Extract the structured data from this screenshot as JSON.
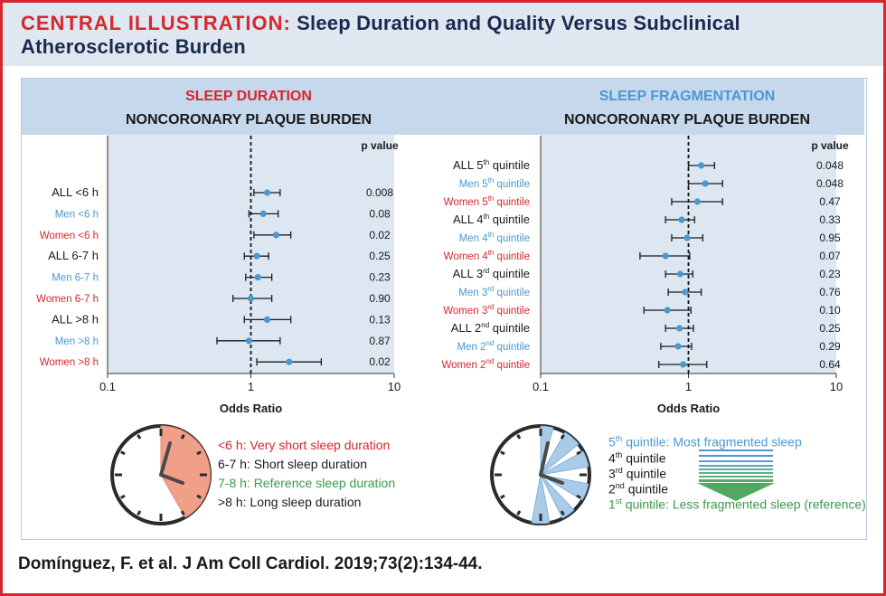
{
  "header": {
    "lead": "CENTRAL ILLUSTRATION:",
    "title": "Sleep Duration and Quality Versus Subclinical Atherosclerotic Burden"
  },
  "left_panel": {
    "section_title": "SLEEP DURATION",
    "subtitle": "NONCORONARY PLAQUE BURDEN",
    "pvalue_header": "p value"
  },
  "right_panel": {
    "section_title": "SLEEP FRAGMENTATION",
    "subtitle": "NONCORONARY PLAQUE BURDEN",
    "pvalue_header": "p value"
  },
  "chart_data": [
    {
      "type": "forest",
      "title": "SLEEP DURATION — NONCORONARY PLAQUE BURDEN",
      "xlabel": "Odds Ratio",
      "xscale": "log",
      "xlim": [
        0.1,
        10
      ],
      "xticks": [
        "0.1",
        "1",
        "10"
      ],
      "reference_line": 1,
      "rows": [
        {
          "label": "ALL <6 h",
          "group": "all",
          "or": 1.3,
          "lo": 1.05,
          "hi": 1.6,
          "p": "0.008"
        },
        {
          "label": "Men <6 h",
          "group": "men",
          "or": 1.22,
          "lo": 0.97,
          "hi": 1.55,
          "p": "0.08"
        },
        {
          "label": "Women <6 h",
          "group": "women",
          "or": 1.5,
          "lo": 1.05,
          "hi": 1.9,
          "p": "0.02"
        },
        {
          "label": "ALL 6-7 h",
          "group": "all",
          "or": 1.1,
          "lo": 0.9,
          "hi": 1.33,
          "p": "0.25"
        },
        {
          "label": "Men 6-7 h",
          "group": "men",
          "or": 1.12,
          "lo": 0.92,
          "hi": 1.4,
          "p": "0.23"
        },
        {
          "label": "Women 6-7 h",
          "group": "women",
          "or": 1.0,
          "lo": 0.75,
          "hi": 1.4,
          "p": "0.90"
        },
        {
          "label": "ALL >8 h",
          "group": "all",
          "or": 1.3,
          "lo": 0.9,
          "hi": 1.9,
          "p": "0.13"
        },
        {
          "label": "Men >8 h",
          "group": "men",
          "or": 0.97,
          "lo": 0.58,
          "hi": 1.6,
          "p": "0.87"
        },
        {
          "label": "Women >8 h",
          "group": "women",
          "or": 1.85,
          "lo": 1.1,
          "hi": 3.1,
          "p": "0.02"
        }
      ]
    },
    {
      "type": "forest",
      "title": "SLEEP FRAGMENTATION — NONCORONARY PLAQUE BURDEN",
      "xlabel": "Odds Ratio",
      "xscale": "log",
      "xlim": [
        0.1,
        10
      ],
      "xticks": [
        "0.1",
        "1",
        "10"
      ],
      "reference_line": 1,
      "rows": [
        {
          "prefix": "ALL 5",
          "sup": "th",
          "suffix": " quintile",
          "group": "all",
          "or": 1.22,
          "lo": 1.0,
          "hi": 1.5,
          "p": "0.048"
        },
        {
          "prefix": "Men 5",
          "sup": "th",
          "suffix": " quintile",
          "group": "men",
          "or": 1.3,
          "lo": 1.0,
          "hi": 1.7,
          "p": "0.048"
        },
        {
          "prefix": "Women 5",
          "sup": "th",
          "suffix": " quintile",
          "group": "women",
          "or": 1.15,
          "lo": 0.77,
          "hi": 1.7,
          "p": "0.47"
        },
        {
          "prefix": "ALL 4",
          "sup": "th",
          "suffix": " quintile",
          "group": "all",
          "or": 0.9,
          "lo": 0.7,
          "hi": 1.1,
          "p": "0.33"
        },
        {
          "prefix": "Men 4",
          "sup": "th",
          "suffix": " quintile",
          "group": "men",
          "or": 0.98,
          "lo": 0.77,
          "hi": 1.25,
          "p": "0.95"
        },
        {
          "prefix": "Women 4",
          "sup": "th",
          "suffix": " quintile",
          "group": "women",
          "or": 0.7,
          "lo": 0.47,
          "hi": 1.02,
          "p": "0.07"
        },
        {
          "prefix": "ALL 3",
          "sup": "rd",
          "suffix": " quintile",
          "group": "all",
          "or": 0.88,
          "lo": 0.7,
          "hi": 1.07,
          "p": "0.23"
        },
        {
          "prefix": "Men 3",
          "sup": "rd",
          "suffix": " quintile",
          "group": "men",
          "or": 0.95,
          "lo": 0.73,
          "hi": 1.22,
          "p": "0.76"
        },
        {
          "prefix": "Women 3",
          "sup": "rd",
          "suffix": " quintile",
          "group": "women",
          "or": 0.72,
          "lo": 0.5,
          "hi": 1.04,
          "p": "0.10"
        },
        {
          "prefix": "ALL 2",
          "sup": "nd",
          "suffix": " quintile",
          "group": "all",
          "or": 0.87,
          "lo": 0.7,
          "hi": 1.08,
          "p": "0.25"
        },
        {
          "prefix": "Men 2",
          "sup": "nd",
          "suffix": " quintile",
          "group": "men",
          "or": 0.85,
          "lo": 0.65,
          "hi": 1.05,
          "p": "0.29"
        },
        {
          "prefix": "Women 2",
          "sup": "nd",
          "suffix": " quintile",
          "group": "women",
          "or": 0.92,
          "lo": 0.63,
          "hi": 1.33,
          "p": "0.64"
        }
      ]
    }
  ],
  "duration_legend": {
    "items": [
      {
        "text": "<6 h: Very short sleep duration",
        "color": "#d7262e"
      },
      {
        "text": "6-7 h: Short sleep duration",
        "color": "#1a1a1a"
      },
      {
        "text": "7-8 h: Reference sleep duration",
        "color": "#3a9a4a"
      },
      {
        "text": ">8 h: Long sleep duration",
        "color": "#1a1a1a"
      }
    ]
  },
  "fragmentation_legend": {
    "q5": {
      "num": "5",
      "sup": "th",
      "text": " quintile: Most fragmented sleep"
    },
    "q4": {
      "num": "4",
      "sup": "th",
      "text": " quintile"
    },
    "q3": {
      "num": "3",
      "sup": "rd",
      "text": " quintile"
    },
    "q2": {
      "num": "2",
      "sup": "nd",
      "text": " quintile"
    },
    "q1": {
      "num": "1",
      "sup": "st",
      "text": " quintile: Less fragmented sleep (reference)"
    }
  },
  "colors": {
    "red": "#d7262e",
    "blue": "#4a98cf",
    "green": "#3a9a4a",
    "dark": "#1a1a1a",
    "navy": "#1a2a4f",
    "dot": "#4a98cf",
    "salmon": "#f0a088",
    "light_blue": "#a9cbe8"
  },
  "citation": "Domínguez, F. et al. J Am Coll Cardiol. 2019;73(2):134-44."
}
